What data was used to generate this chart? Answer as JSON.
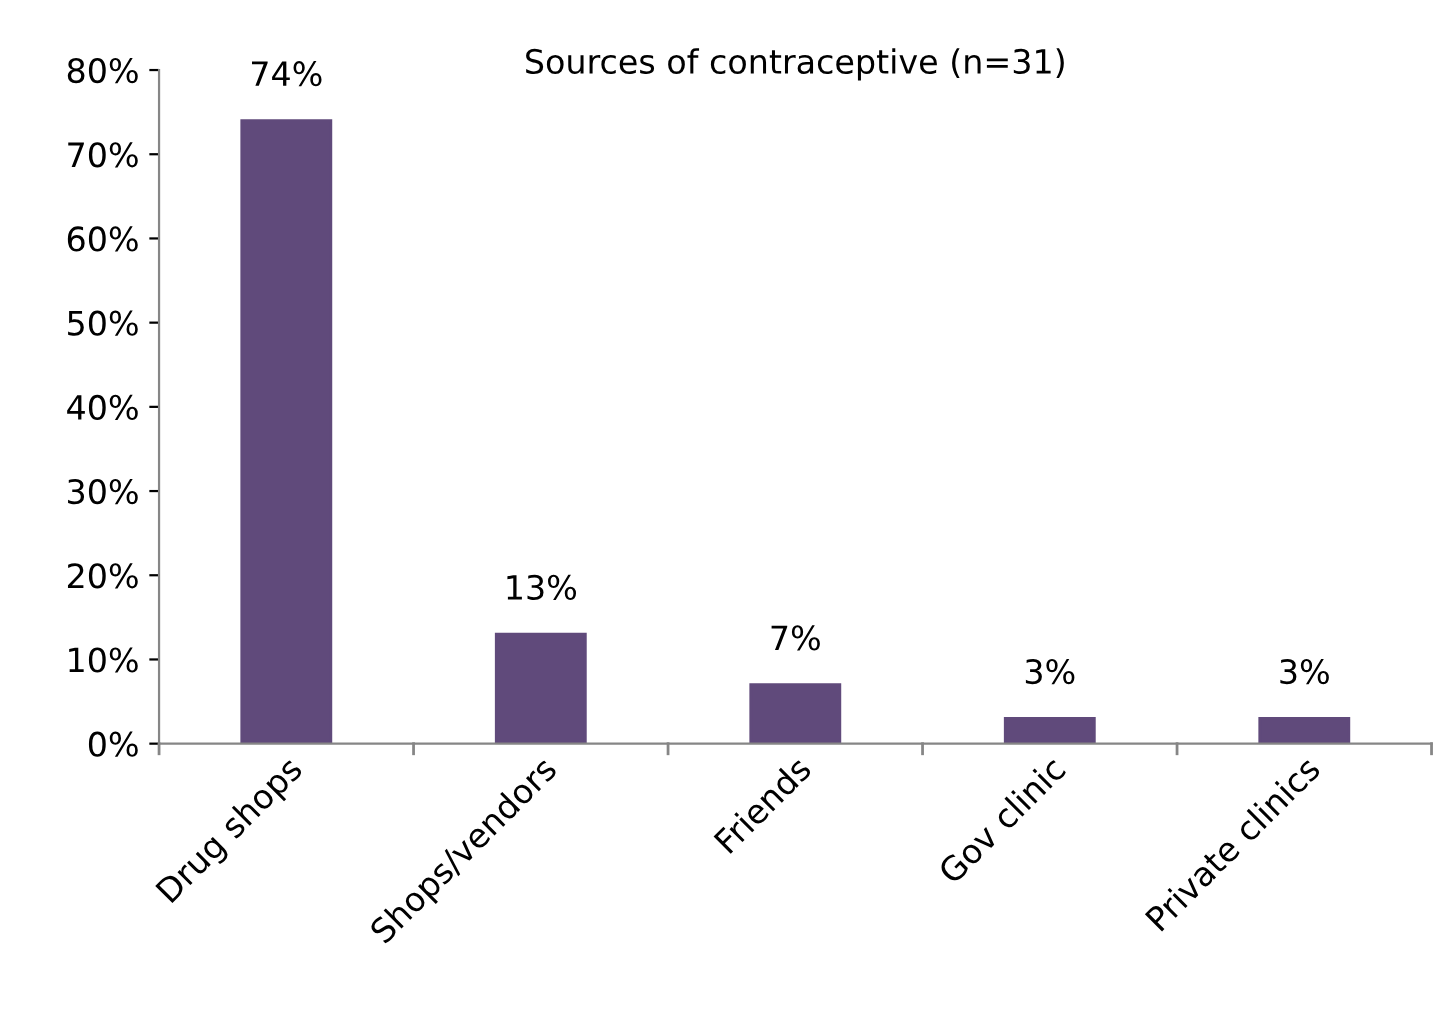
{
  "chart_data": {
    "type": "bar",
    "title": "Sources of contraceptive (n=31)",
    "categories": [
      "Drug shops",
      "Shops/vendors",
      "Friends",
      "Gov clinic",
      "Private clinics"
    ],
    "values": [
      74,
      13,
      7,
      3,
      3
    ],
    "value_labels": [
      "74%",
      "13%",
      "7%",
      "3%",
      "3%"
    ],
    "color": "#604a7b",
    "ylim": [
      0,
      80
    ],
    "yticks": [
      {
        "value": 0,
        "label": "0%"
      },
      {
        "value": 10,
        "label": "10%"
      },
      {
        "value": 20,
        "label": "20%"
      },
      {
        "value": 30,
        "label": "30%"
      },
      {
        "value": 40,
        "label": "40%"
      },
      {
        "value": 50,
        "label": "50%"
      },
      {
        "value": 60,
        "label": "60%"
      },
      {
        "value": 70,
        "label": "70%"
      },
      {
        "value": 80,
        "label": "80%"
      }
    ],
    "grid": false,
    "legend": false
  }
}
